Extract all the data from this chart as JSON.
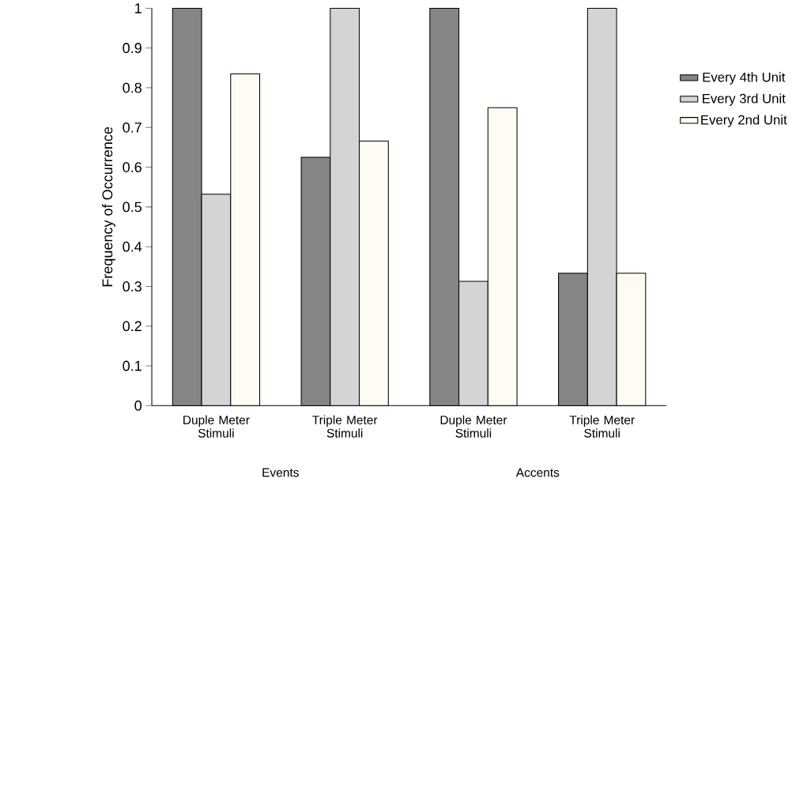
{
  "chart_data": {
    "type": "bar",
    "ylabel": "Frequency of Occurrence",
    "categories": [
      "Duple Meter Stimuli",
      "Triple Meter Stimuli",
      "Duple Meter Stimuli",
      "Triple Meter Stimuli"
    ],
    "series": [
      {
        "name": "Every 4th Unit",
        "color": "#858585",
        "values": [
          1,
          0.625,
          1,
          0.333
        ]
      },
      {
        "name": "Every 3rd Unit",
        "color": "#d4d4d4",
        "values": [
          0.532,
          1,
          0.313,
          1
        ]
      },
      {
        "name": "Every 2nd Unit",
        "color": "#fffaf2",
        "values": [
          0.835,
          0.666,
          0.75,
          0.333
        ]
      }
    ],
    "annotations": [
      "Events",
      "Accents"
    ],
    "ylim": [
      0,
      1
    ],
    "yticks": [
      0,
      0.1,
      0.2,
      0.3,
      0.4,
      0.5,
      0.6,
      0.7,
      0.8,
      0.9,
      1
    ],
    "grid": false,
    "legend": "right"
  }
}
